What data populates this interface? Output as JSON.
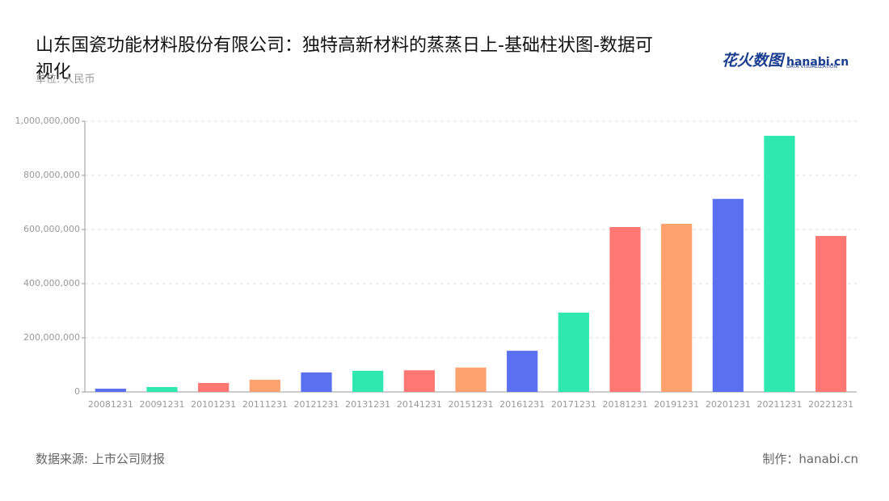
{
  "chart_data": {
    "type": "bar",
    "title": "山东国瓷功能材料股份有限公司：独特高新材料的蒸蒸日上-基础柱状图-数据可视化",
    "subtitle": "单位: 人民币",
    "source": "数据来源: 上市公司财报",
    "credit": "制作：hanabi.cn",
    "logo": {
      "name": "花火数图",
      "brand": "hanabi.cn",
      "tagline": "DATA VISUALIZATION"
    },
    "categories": [
      "20081231",
      "20091231",
      "20101231",
      "20111231",
      "20121231",
      "20131231",
      "20141231",
      "20151231",
      "20161231",
      "20171231",
      "20181231",
      "20191231",
      "20201231",
      "20211231",
      "20221231"
    ],
    "values": [
      12000000,
      18000000,
      33000000,
      45000000,
      72000000,
      78000000,
      80000000,
      90000000,
      152000000,
      293000000,
      609000000,
      621000000,
      713000000,
      946000000,
      576000000
    ],
    "colors": [
      "#5b70f0",
      "#2ee8b0",
      "#ff7772",
      "#ffa270",
      "#5b70f0",
      "#2ee8b0",
      "#ff7772",
      "#ffa270",
      "#5b70f0",
      "#2ee8b0",
      "#ff7772",
      "#ffa270",
      "#5b70f0",
      "#2ee8b0",
      "#ff7772"
    ],
    "ylim": [
      0,
      1000000000
    ],
    "yticks": [
      0,
      {
        "value": 200000000,
        "label": "200,000,000"
      },
      {
        "value": 400000000,
        "label": "400,000,000"
      },
      {
        "value": 600000000,
        "label": "600,000,000"
      },
      {
        "value": 800000000,
        "label": "800,000,000"
      },
      {
        "value": 1000000000,
        "label": "1,000,000,000"
      }
    ],
    "grid": true
  }
}
